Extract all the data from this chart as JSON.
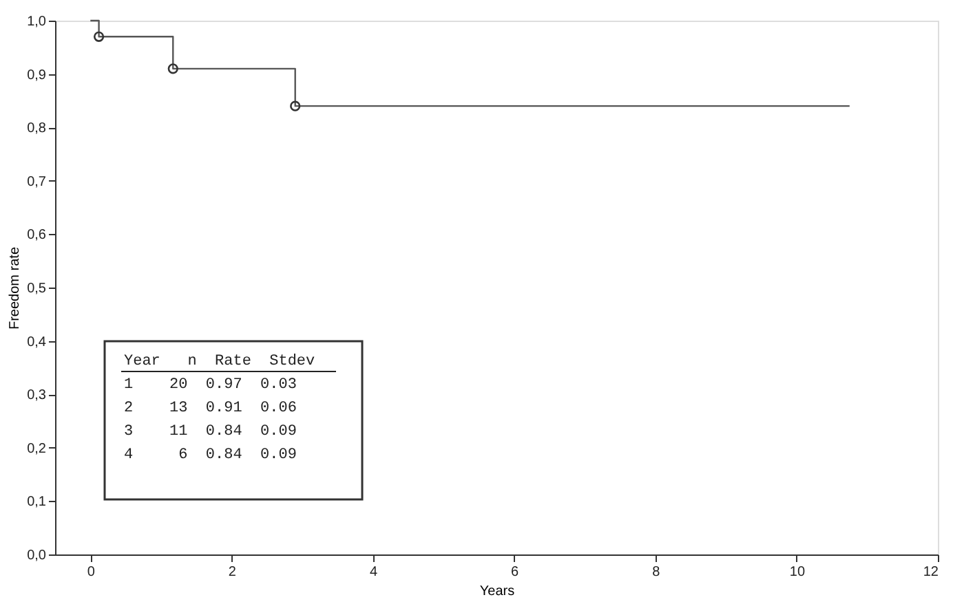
{
  "chart_data": {
    "type": "step",
    "xlabel": "Years",
    "ylabel": "Freedom rate",
    "xlim": [
      -0.5,
      12
    ],
    "xticks": [
      0,
      2,
      4,
      6,
      8,
      10,
      12
    ],
    "ylim": [
      0,
      1
    ],
    "yticks": [
      {
        "value": 0,
        "label": "0,0"
      },
      {
        "value": 0.1,
        "label": "0,1"
      },
      {
        "value": 0.2,
        "label": "0,2"
      },
      {
        "value": 0.3,
        "label": "0,3"
      },
      {
        "value": 0.4,
        "label": "0,4"
      },
      {
        "value": 0.5,
        "label": "0,5"
      },
      {
        "value": 0.6,
        "label": "0,6"
      },
      {
        "value": 0.7,
        "label": "0,7"
      },
      {
        "value": 0.8,
        "label": "0,8"
      },
      {
        "value": 0.9,
        "label": "0,9"
      },
      {
        "value": 1,
        "label": "1,0"
      }
    ],
    "grid": false,
    "series": [
      {
        "color": "#555555",
        "marker": "none",
        "x": [
          0,
          0.12,
          1.17,
          2.9,
          10.75
        ],
        "values": [
          1,
          0.97,
          0.91,
          0.84,
          0.84
        ]
      },
      {
        "type": "scatter",
        "color": "#333333",
        "marker": "circle",
        "x": [
          0.12,
          1.17,
          2.9
        ],
        "values": [
          0.97,
          0.91,
          0.84
        ]
      }
    ],
    "annotations": [
      "Year   n  Rate  Stdev",
      " 1    20  0.97  0.03",
      " 2    13  0.91  0.06",
      " 3    11  0.84  0.09",
      " 4     6  0.84  0.09"
    ]
  }
}
